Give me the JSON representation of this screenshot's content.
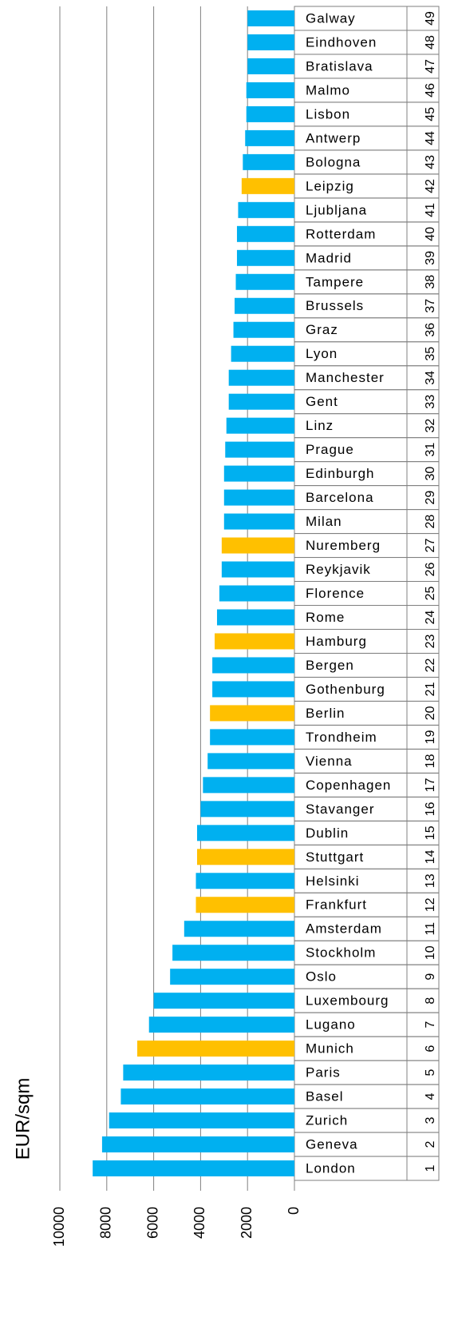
{
  "chart_data": {
    "type": "bar",
    "orientation": "horizontal",
    "axis_label": "EUR/sqm",
    "categories": [
      "Galway",
      "Eindhoven",
      "Bratislava",
      "Malmo",
      "Lisbon",
      "Antwerp",
      "Bologna",
      "Leipzig",
      "Ljubljana",
      "Rotterdam",
      "Madrid",
      "Tampere",
      "Brussels",
      "Graz",
      "Lyon",
      "Manchester",
      "Gent",
      "Linz",
      "Prague",
      "Edinburgh",
      "Barcelona",
      "Milan",
      "Nuremberg",
      "Reykjavik",
      "Florence",
      "Rome",
      "Hamburg",
      "Bergen",
      "Gothenburg",
      "Berlin",
      "Trondheim",
      "Vienna",
      "Copenhagen",
      "Stavanger",
      "Dublin",
      "Stuttgart",
      "Helsinki",
      "Frankfurt",
      "Amsterdam",
      "Stockholm",
      "Oslo",
      "Luxembourg",
      "Lugano",
      "Munich",
      "Paris",
      "Basel",
      "Zurich",
      "Geneva",
      "London"
    ],
    "ranks": [
      49,
      48,
      47,
      46,
      45,
      44,
      43,
      42,
      41,
      40,
      39,
      38,
      37,
      36,
      35,
      34,
      33,
      32,
      31,
      30,
      29,
      28,
      27,
      26,
      25,
      24,
      23,
      22,
      21,
      20,
      19,
      18,
      17,
      16,
      15,
      14,
      13,
      12,
      11,
      10,
      9,
      8,
      7,
      6,
      5,
      4,
      3,
      2,
      1
    ],
    "values": [
      2000,
      2000,
      2000,
      2050,
      2050,
      2100,
      2200,
      2250,
      2400,
      2450,
      2450,
      2500,
      2550,
      2600,
      2700,
      2800,
      2800,
      2900,
      2950,
      3000,
      3000,
      3000,
      3100,
      3100,
      3200,
      3300,
      3400,
      3500,
      3500,
      3600,
      3600,
      3700,
      3900,
      4000,
      4150,
      4150,
      4200,
      4200,
      4700,
      5200,
      5300,
      6000,
      6200,
      6700,
      7300,
      7400,
      7900,
      8200,
      8600
    ],
    "colors": [
      "#00b0f0",
      "#00b0f0",
      "#00b0f0",
      "#00b0f0",
      "#00b0f0",
      "#00b0f0",
      "#00b0f0",
      "#ffc000",
      "#00b0f0",
      "#00b0f0",
      "#00b0f0",
      "#00b0f0",
      "#00b0f0",
      "#00b0f0",
      "#00b0f0",
      "#00b0f0",
      "#00b0f0",
      "#00b0f0",
      "#00b0f0",
      "#00b0f0",
      "#00b0f0",
      "#00b0f0",
      "#ffc000",
      "#00b0f0",
      "#00b0f0",
      "#00b0f0",
      "#ffc000",
      "#00b0f0",
      "#00b0f0",
      "#ffc000",
      "#00b0f0",
      "#00b0f0",
      "#00b0f0",
      "#00b0f0",
      "#00b0f0",
      "#ffc000",
      "#00b0f0",
      "#ffc000",
      "#00b0f0",
      "#00b0f0",
      "#00b0f0",
      "#00b0f0",
      "#00b0f0",
      "#ffc000",
      "#00b0f0",
      "#00b0f0",
      "#00b0f0",
      "#00b0f0",
      "#00b0f0"
    ],
    "xlim": [
      0,
      10000
    ],
    "xticks": [
      0,
      2000,
      4000,
      6000,
      8000,
      10000
    ],
    "grid": true
  }
}
